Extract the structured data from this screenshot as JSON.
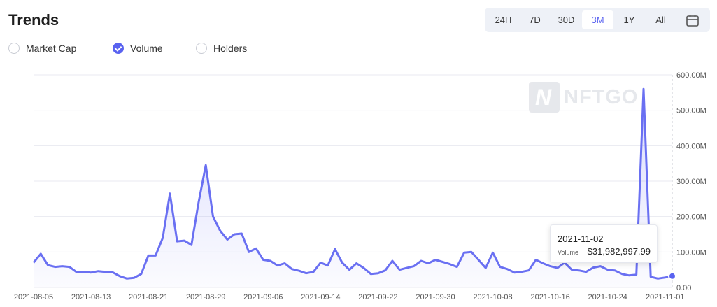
{
  "header": {
    "title": "Trends"
  },
  "ranges": {
    "items": [
      {
        "label": "24H",
        "active": false
      },
      {
        "label": "7D",
        "active": false
      },
      {
        "label": "30D",
        "active": false
      },
      {
        "label": "3M",
        "active": true
      },
      {
        "label": "1Y",
        "active": false
      },
      {
        "label": "All",
        "active": false
      }
    ],
    "calendar_icon": "calendar-icon"
  },
  "metrics": [
    {
      "label": "Market Cap",
      "checked": false
    },
    {
      "label": "Volume",
      "checked": true
    },
    {
      "label": "Holders",
      "checked": false
    }
  ],
  "watermark": {
    "glyph": "N",
    "text": "NFTGO"
  },
  "tooltip": {
    "date": "2021-11-02",
    "label": "Volume",
    "value": "$31,982,997.99"
  },
  "colors": {
    "accent": "#5a63f0",
    "line": "#6a70f2",
    "grid": "#e8eaf0"
  },
  "chart_data": {
    "type": "area",
    "title": "",
    "xlabel": "",
    "ylabel": "",
    "ylim": [
      0,
      600000000
    ],
    "y_ticks": [
      {
        "value": 0,
        "label": "0.00"
      },
      {
        "value": 100000000,
        "label": "100.00M"
      },
      {
        "value": 200000000,
        "label": "200.00M"
      },
      {
        "value": 300000000,
        "label": "300.00M"
      },
      {
        "value": 400000000,
        "label": "400.00M"
      },
      {
        "value": 500000000,
        "label": "500.00M"
      },
      {
        "value": 600000000,
        "label": "600.00M"
      }
    ],
    "x_start": "2021-08-05",
    "x_ticks": [
      "2021-08-05",
      "2021-08-13",
      "2021-08-21",
      "2021-08-29",
      "2021-09-06",
      "2021-09-14",
      "2021-09-22",
      "2021-09-30",
      "2021-10-08",
      "2021-10-16",
      "2021-10-24",
      "2021-11-01"
    ],
    "grid": true,
    "highlight_index": 89,
    "series": [
      {
        "name": "Volume",
        "values": [
          70000000,
          95000000,
          63000000,
          58000000,
          60000000,
          58000000,
          43000000,
          44000000,
          42000000,
          46000000,
          44000000,
          43000000,
          32000000,
          25000000,
          27000000,
          38000000,
          90000000,
          90000000,
          140000000,
          265000000,
          130000000,
          132000000,
          120000000,
          240000000,
          345000000,
          200000000,
          160000000,
          135000000,
          150000000,
          152000000,
          100000000,
          110000000,
          78000000,
          75000000,
          62000000,
          68000000,
          52000000,
          47000000,
          40000000,
          44000000,
          70000000,
          62000000,
          108000000,
          70000000,
          50000000,
          68000000,
          55000000,
          38000000,
          40000000,
          48000000,
          75000000,
          50000000,
          55000000,
          60000000,
          75000000,
          68000000,
          78000000,
          72000000,
          66000000,
          58000000,
          98000000,
          100000000,
          78000000,
          55000000,
          98000000,
          58000000,
          52000000,
          42000000,
          44000000,
          48000000,
          78000000,
          68000000,
          60000000,
          55000000,
          70000000,
          50000000,
          48000000,
          44000000,
          56000000,
          60000000,
          50000000,
          48000000,
          38000000,
          34000000,
          36000000,
          560000000,
          30000000,
          25000000,
          28000000,
          31982997.99
        ]
      }
    ]
  }
}
